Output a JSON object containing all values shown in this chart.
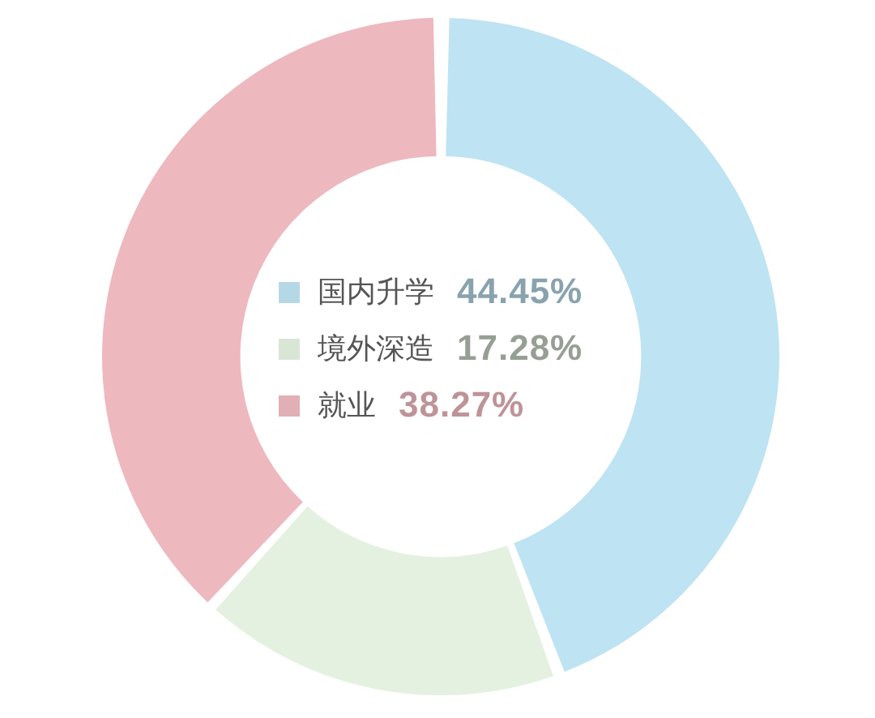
{
  "chart_data": {
    "type": "donut",
    "categories": [
      "国内升学",
      "境外深造",
      "就业"
    ],
    "values": [
      44.45,
      17.28,
      38.27
    ],
    "colors": [
      "#bee3f2",
      "#e4f1e0",
      "#edb8be"
    ],
    "value_labels": [
      "44.45%",
      "17.28%",
      "38.27%"
    ],
    "legend": "center"
  }
}
